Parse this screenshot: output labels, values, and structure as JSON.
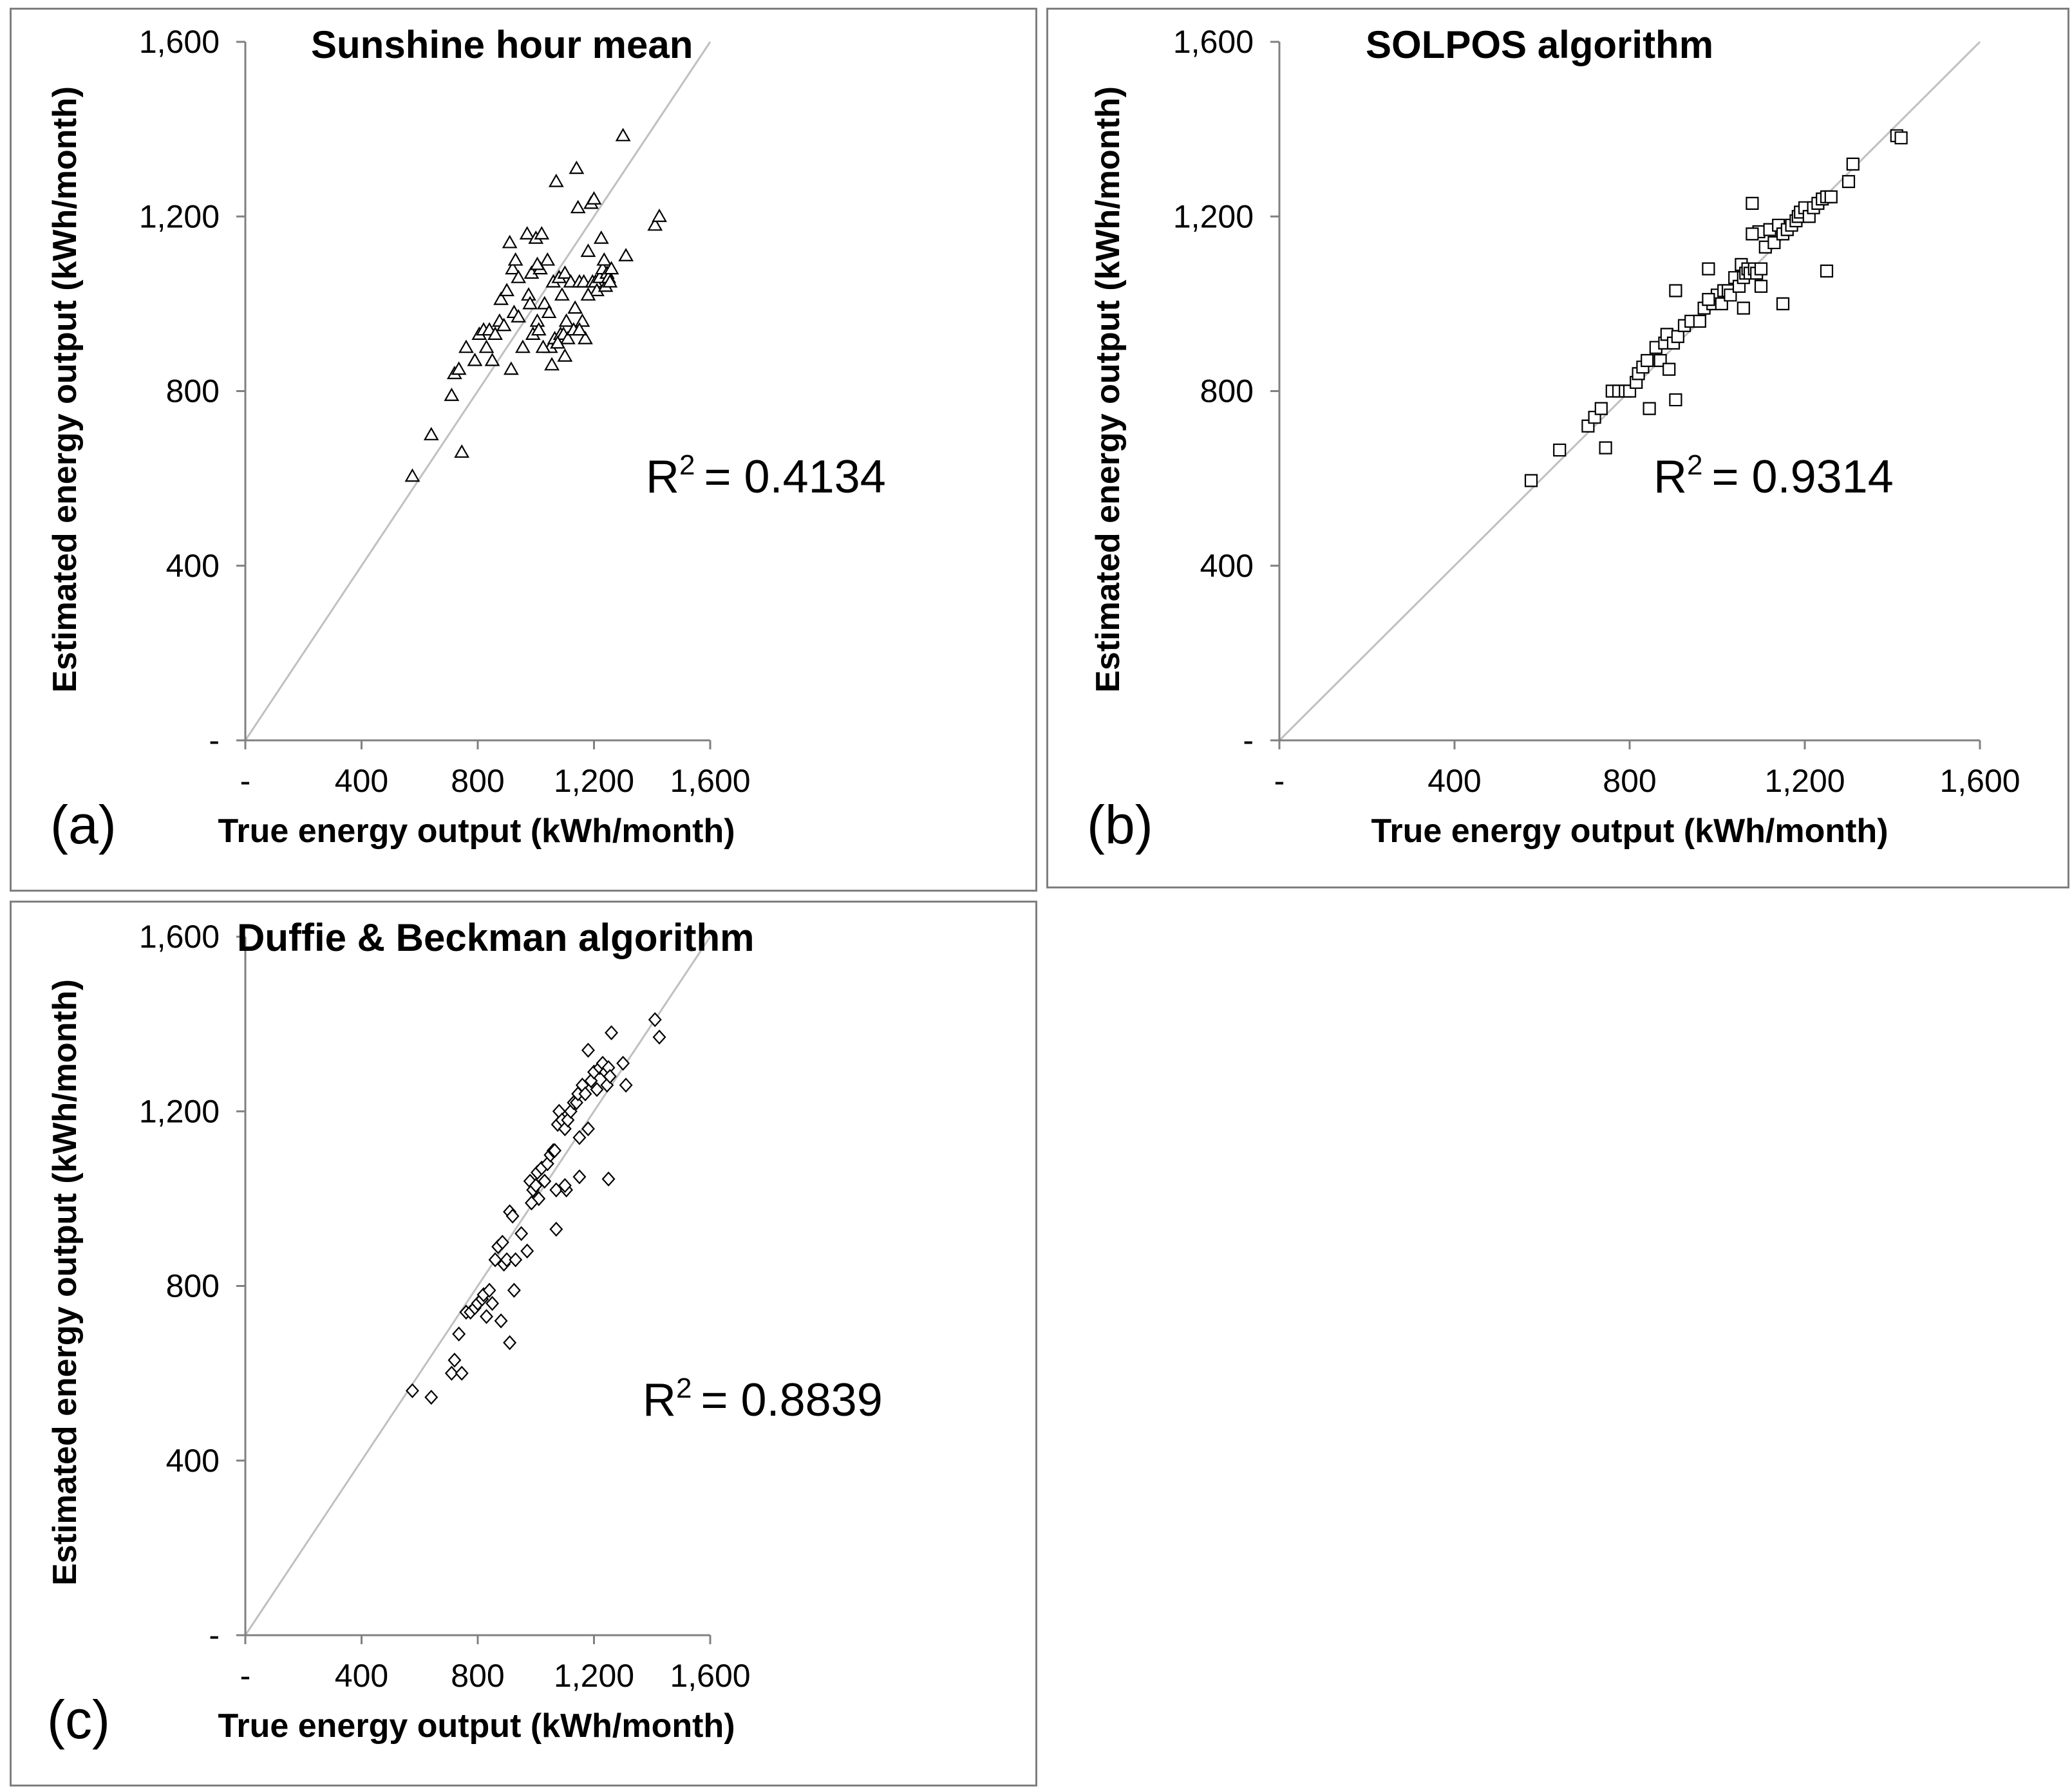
{
  "figure": {
    "colors": {
      "frame": "#7f7f7f",
      "diagonal": "#c0c0c0",
      "axis": "#808080",
      "marker": "#000000",
      "text": "#000000"
    }
  },
  "chart_data": [
    {
      "type": "scatter",
      "panel_label": "(a)",
      "title": "Sunshine hour mean",
      "xlabel": "True energy output (kWh/month)",
      "ylabel": "Estimated energy output (kWh/month)",
      "xlim": [
        0,
        1600
      ],
      "ylim": [
        0,
        1600
      ],
      "x_ticks": [
        0,
        400,
        800,
        1200,
        1600
      ],
      "x_tick_labels": [
        "-",
        "400",
        "800",
        "1,200",
        "1,600"
      ],
      "y_ticks": [
        0,
        400,
        800,
        1200,
        1600
      ],
      "y_tick_labels": [
        "-",
        "400",
        "800",
        "1,200",
        "1,600"
      ],
      "marker": "triangle",
      "reference_line": "y = x",
      "annotation": {
        "r2_label": "R",
        "r2_exponent": "2",
        "r2_value": "= 0.4134"
      },
      "series": [
        {
          "name": "Sunshine hour mean",
          "x": [
            575,
            640,
            710,
            720,
            735,
            745,
            760,
            790,
            805,
            820,
            830,
            840,
            850,
            860,
            875,
            880,
            890,
            900,
            910,
            915,
            920,
            925,
            930,
            940,
            955,
            970,
            975,
            980,
            985,
            990,
            1000,
            1005,
            1010,
            1015,
            1020,
            1030,
            1040,
            1045,
            1050,
            1055,
            1060,
            1065,
            1070,
            1075,
            1080,
            1085,
            1090,
            1095,
            1100,
            1105,
            1110,
            1120,
            1130,
            1140,
            1145,
            1150,
            1160,
            1165,
            1170,
            1180,
            1190,
            1195,
            1200,
            1205,
            1210,
            1220,
            1225,
            1230,
            1235,
            1240,
            1245,
            1250,
            1255,
            1260,
            1300,
            1310,
            1410,
            1425,
            1075,
            1150,
            940,
            1005,
            1100,
            1180,
            1025,
            1135
          ],
          "y": [
            605,
            700,
            790,
            840,
            850,
            660,
            900,
            870,
            930,
            940,
            900,
            940,
            870,
            930,
            960,
            1010,
            950,
            1030,
            1140,
            850,
            1080,
            980,
            1100,
            1060,
            900,
            1160,
            1020,
            1000,
            1070,
            930,
            1150,
            960,
            940,
            1080,
            1160,
            1000,
            1100,
            980,
            900,
            860,
            1050,
            920,
            1280,
            910,
            1060,
            930,
            1020,
            930,
            1070,
            960,
            920,
            1050,
            940,
            1310,
            1220,
            1050,
            960,
            1050,
            920,
            1120,
            1230,
            1050,
            1240,
            1050,
            1030,
            1060,
            1150,
            1080,
            1100,
            1040,
            1070,
            1060,
            1050,
            1080,
            1385,
            1110,
            1180,
            1200,
            910,
            940,
            970,
            1090,
            880,
            1020,
            900,
            990
          ]
        }
      ]
    },
    {
      "type": "scatter",
      "panel_label": "(b)",
      "title": "SOLPOS algorithm",
      "xlabel": "True energy output (kWh/month)",
      "ylabel": "Estimated energy output (kWh/month)",
      "xlim": [
        0,
        1600
      ],
      "ylim": [
        0,
        1600
      ],
      "x_ticks": [
        0,
        400,
        800,
        1200,
        1600
      ],
      "x_tick_labels": [
        "-",
        "400",
        "800",
        "1,200",
        "1,600"
      ],
      "y_ticks": [
        0,
        400,
        800,
        1200,
        1600
      ],
      "y_tick_labels": [
        "-",
        "400",
        "800",
        "1,200",
        "1,600"
      ],
      "marker": "square",
      "reference_line": "y = x",
      "annotation": {
        "r2_label": "R",
        "r2_exponent": "2",
        "r2_value": "= 0.9314"
      },
      "series": [
        {
          "name": "SOLPOS algorithm",
          "x": [
            575,
            640,
            705,
            720,
            735,
            745,
            760,
            775,
            790,
            800,
            815,
            820,
            830,
            840,
            860,
            870,
            880,
            885,
            890,
            900,
            905,
            910,
            925,
            940,
            960,
            970,
            980,
            990,
            1000,
            1010,
            1015,
            1025,
            1030,
            1040,
            1050,
            1055,
            1060,
            1065,
            1070,
            1075,
            1080,
            1085,
            1090,
            1095,
            1100,
            1110,
            1120,
            1130,
            1140,
            1150,
            1160,
            1170,
            1180,
            1185,
            1190,
            1200,
            1210,
            1220,
            1230,
            1240,
            1250,
            1260,
            1300,
            1310,
            1410,
            1420,
            1080,
            1150,
            1250,
            905,
            845,
            980,
            1060,
            1100
          ],
          "y": [
            595,
            665,
            720,
            740,
            760,
            670,
            800,
            800,
            800,
            800,
            820,
            840,
            855,
            870,
            900,
            870,
            910,
            930,
            850,
            910,
            780,
            925,
            950,
            960,
            960,
            990,
            1080,
            1000,
            1020,
            1000,
            1030,
            1030,
            1020,
            1060,
            1040,
            1090,
            1060,
            1070,
            1080,
            1070,
            1230,
            1080,
            1070,
            1165,
            1040,
            1130,
            1170,
            1140,
            1180,
            1160,
            1170,
            1180,
            1190,
            1200,
            1210,
            1220,
            1200,
            1220,
            1230,
            1240,
            1245,
            1245,
            1280,
            1320,
            1385,
            1380,
            1160,
            1000,
            1075,
            1030,
            760,
            1010,
            990,
            1080
          ]
        }
      ]
    },
    {
      "type": "scatter",
      "panel_label": "(c)",
      "title": "Duffie & Beckman algorithm",
      "xlabel": "True energy output (kWh/month)",
      "ylabel": "Estimated energy output (kWh/month)",
      "xlim": [
        0,
        1600
      ],
      "ylim": [
        0,
        1600
      ],
      "x_ticks": [
        0,
        400,
        800,
        1200,
        1600
      ],
      "x_tick_labels": [
        "-",
        "400",
        "800",
        "1,200",
        "1,600"
      ],
      "y_ticks": [
        0,
        400,
        800,
        1200,
        1600
      ],
      "y_tick_labels": [
        "-",
        "400",
        "800",
        "1,200",
        "1,600"
      ],
      "marker": "diamond",
      "reference_line": "y = x",
      "annotation": {
        "r2_label": "R",
        "r2_exponent": "2",
        "r2_value": "= 0.8839"
      },
      "series": [
        {
          "name": "Duffie & Beckman algorithm",
          "x": [
            575,
            640,
            710,
            720,
            735,
            745,
            760,
            775,
            790,
            800,
            815,
            820,
            830,
            840,
            850,
            870,
            880,
            885,
            890,
            900,
            910,
            920,
            925,
            930,
            950,
            970,
            980,
            990,
            1000,
            1005,
            1010,
            1020,
            1030,
            1040,
            1050,
            1060,
            1065,
            1070,
            1075,
            1080,
            1090,
            1100,
            1105,
            1110,
            1120,
            1130,
            1140,
            1145,
            1150,
            1160,
            1170,
            1180,
            1190,
            1200,
            1210,
            1220,
            1230,
            1240,
            1245,
            1250,
            1255,
            1260,
            1300,
            1310,
            1410,
            1425,
            1150,
            1250,
            1070,
            910,
            985,
            1100,
            860,
            1180
          ],
          "y": [
            560,
            545,
            600,
            630,
            690,
            600,
            740,
            740,
            750,
            760,
            770,
            780,
            730,
            790,
            760,
            890,
            720,
            900,
            850,
            860,
            970,
            960,
            790,
            860,
            920,
            880,
            1040,
            1020,
            1030,
            1060,
            1000,
            1070,
            1040,
            1080,
            1100,
            1110,
            1110,
            1020,
            1170,
            1200,
            1180,
            1160,
            1020,
            1180,
            1200,
            1220,
            1220,
            1240,
            1140,
            1260,
            1240,
            1340,
            1270,
            1290,
            1250,
            1300,
            1310,
            1290,
            1260,
            1300,
            1280,
            1380,
            1310,
            1260,
            1410,
            1370,
            1050,
            1045,
            930,
            670,
            990,
            1030,
            860,
            1160
          ]
        }
      ]
    }
  ]
}
